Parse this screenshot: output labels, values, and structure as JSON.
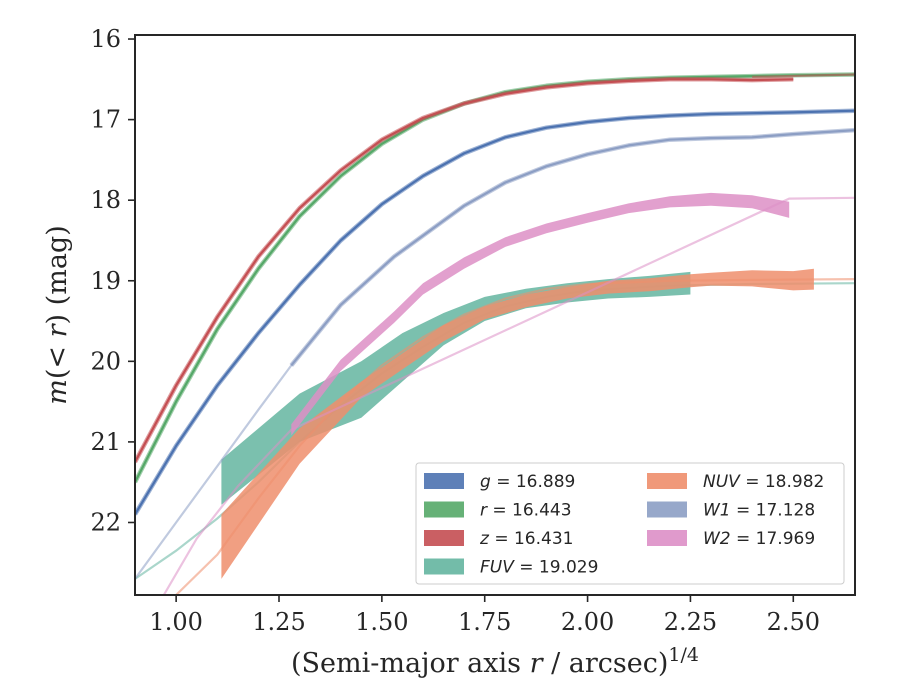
{
  "chart_data": {
    "type": "line",
    "xlabel": "(Semi-major axis r / arcsec)",
    "xlabel_superscript": "1/4",
    "ylabel": "m(< r) (mag)",
    "xlim": [
      0.9,
      2.65
    ],
    "ylim": [
      22.9,
      15.95
    ],
    "y_inverted": true,
    "grid": false,
    "legend_position": "lower-right",
    "x_ticks": [
      1.0,
      1.25,
      1.5,
      1.75,
      2.0,
      2.25,
      2.5
    ],
    "x_tick_labels": [
      "1.00",
      "1.25",
      "1.50",
      "1.75",
      "2.00",
      "2.25",
      "2.50"
    ],
    "y_ticks": [
      16,
      17,
      18,
      19,
      20,
      21,
      22
    ],
    "y_tick_labels": [
      "16",
      "17",
      "18",
      "19",
      "20",
      "21",
      "22"
    ],
    "series": [
      {
        "name": "g = 16.889",
        "color": "#4c72b0",
        "band_halfwidth": 0.02,
        "model_x": [],
        "model_y": [],
        "x": [
          0.9,
          1.0,
          1.1,
          1.2,
          1.3,
          1.4,
          1.5,
          1.6,
          1.7,
          1.8,
          1.9,
          2.0,
          2.1,
          2.2,
          2.3,
          2.4,
          2.5,
          2.65
        ],
        "y": [
          21.9,
          21.05,
          20.3,
          19.65,
          19.05,
          18.5,
          18.05,
          17.7,
          17.42,
          17.22,
          17.1,
          17.03,
          16.98,
          16.95,
          16.93,
          16.92,
          16.91,
          16.89
        ]
      },
      {
        "name": "r = 16.443",
        "color": "#55a868",
        "band_halfwidth": 0.02,
        "model_x": [],
        "model_y": [],
        "x": [
          0.9,
          1.0,
          1.1,
          1.2,
          1.3,
          1.4,
          1.5,
          1.6,
          1.7,
          1.8,
          1.9,
          2.0,
          2.1,
          2.2,
          2.3,
          2.4,
          2.5,
          2.65
        ],
        "y": [
          21.5,
          20.5,
          19.6,
          18.85,
          18.2,
          17.7,
          17.3,
          17.0,
          16.8,
          16.66,
          16.58,
          16.53,
          16.5,
          16.48,
          16.47,
          16.46,
          16.45,
          16.44
        ]
      },
      {
        "name": "z = 16.431",
        "color": "#c44e52",
        "band_halfwidth": 0.02,
        "model_x": [
          2.4,
          2.65
        ],
        "model_y": [
          16.47,
          16.44
        ],
        "x": [
          0.9,
          1.0,
          1.1,
          1.2,
          1.3,
          1.4,
          1.5,
          1.6,
          1.7,
          1.8,
          1.9,
          2.0,
          2.1,
          2.2,
          2.3,
          2.4,
          2.5
        ],
        "y": [
          21.25,
          20.3,
          19.45,
          18.7,
          18.1,
          17.63,
          17.25,
          16.98,
          16.8,
          16.68,
          16.6,
          16.55,
          16.52,
          16.5,
          16.5,
          16.51,
          16.5
        ]
      },
      {
        "name": "FUV = 19.029",
        "color": "#64b5a0",
        "band_halfwidth": 0.0,
        "x": [
          1.11,
          1.3,
          1.45,
          1.55,
          1.65,
          1.75,
          1.85,
          1.95,
          2.05,
          2.15,
          2.25
        ],
        "y": [
          21.5,
          20.7,
          20.35,
          19.95,
          19.6,
          19.35,
          19.22,
          19.15,
          19.1,
          19.07,
          19.03
        ],
        "err": [
          0.28,
          0.3,
          0.35,
          0.3,
          0.2,
          0.15,
          0.12,
          0.12,
          0.12,
          0.13,
          0.14
        ],
        "model_x": [
          0.9,
          1.0,
          1.1,
          1.2,
          1.3,
          1.4,
          1.5,
          1.6,
          1.7,
          1.8,
          1.9,
          2.0,
          2.2,
          2.4,
          2.65
        ],
        "model_y": [
          22.7,
          22.35,
          21.95,
          21.5,
          21.0,
          20.55,
          20.15,
          19.82,
          19.52,
          19.32,
          19.2,
          19.12,
          19.06,
          19.04,
          19.03
        ]
      },
      {
        "name": "NUV = 18.982",
        "color": "#ee8e6c",
        "band_halfwidth": 0.0,
        "x": [
          1.11,
          1.3,
          1.45,
          1.55,
          1.65,
          1.75,
          1.85,
          1.95,
          2.05,
          2.15,
          2.25,
          2.3,
          2.4,
          2.5,
          2.55
        ],
        "y": [
          22.3,
          21.05,
          20.35,
          20.0,
          19.65,
          19.4,
          19.25,
          19.15,
          19.08,
          19.05,
          19.0,
          18.98,
          18.97,
          19.0,
          18.98
        ],
        "err": [
          0.4,
          0.22,
          0.1,
          0.1,
          0.1,
          0.08,
          0.08,
          0.07,
          0.08,
          0.08,
          0.08,
          0.08,
          0.1,
          0.12,
          0.13
        ],
        "model_x": [
          1.0,
          1.1,
          1.2,
          1.3,
          1.4,
          1.5,
          1.6,
          1.7,
          1.8,
          1.9,
          2.0,
          2.2,
          2.4,
          2.65
        ],
        "model_y": [
          22.9,
          22.4,
          21.7,
          21.05,
          20.5,
          20.05,
          19.7,
          19.42,
          19.22,
          19.1,
          19.04,
          19.0,
          18.99,
          18.98
        ]
      },
      {
        "name": "W1 = 17.128",
        "color": "#8c9ec4",
        "band_halfwidth": 0.03,
        "x": [
          1.28,
          1.4,
          1.53,
          1.7,
          1.8,
          1.9,
          2.0,
          2.1,
          2.2,
          2.3,
          2.4,
          2.5,
          2.65
        ],
        "y": [
          20.05,
          19.3,
          18.7,
          18.07,
          17.78,
          17.58,
          17.43,
          17.32,
          17.25,
          17.23,
          17.22,
          17.18,
          17.13
        ],
        "model_x": [
          0.9,
          1.0,
          1.1,
          1.2,
          1.28
        ],
        "model_y": [
          22.7,
          22.0,
          21.3,
          20.6,
          20.05
        ]
      },
      {
        "name": "W2 = 17.969",
        "color": "#dd8fc6",
        "band_halfwidth": 0.0,
        "x": [
          1.28,
          1.4,
          1.53,
          1.6,
          1.7,
          1.8,
          1.9,
          2.0,
          2.1,
          2.2,
          2.3,
          2.4,
          2.49
        ],
        "y": [
          20.85,
          20.05,
          19.45,
          19.1,
          18.78,
          18.52,
          18.35,
          18.22,
          18.1,
          18.02,
          17.99,
          18.02,
          18.12
        ],
        "err": [
          0.07,
          0.07,
          0.07,
          0.07,
          0.07,
          0.06,
          0.06,
          0.06,
          0.06,
          0.07,
          0.08,
          0.08,
          0.1
        ],
        "model_x": [
          0.97,
          1.05,
          1.15,
          1.28,
          2.49,
          2.65
        ],
        "model_y": [
          22.9,
          22.2,
          21.55,
          20.85,
          17.98,
          17.97
        ]
      }
    ],
    "legend": [
      {
        "label": "g = 16.889",
        "var": "g",
        "value": "16.889",
        "color": "#4c72b0"
      },
      {
        "label": "r = 16.443",
        "var": "r",
        "value": "16.443",
        "color": "#55a868"
      },
      {
        "label": "z = 16.431",
        "var": "z",
        "value": "16.431",
        "color": "#c44e52"
      },
      {
        "label": "FUV = 19.029",
        "var": "FUV",
        "value": "19.029",
        "color": "#64b5a0"
      },
      {
        "label": "NUV = 18.982",
        "var": "NUV",
        "value": "18.982",
        "color": "#ee8e6c"
      },
      {
        "label": "W1 = 17.128",
        "var": "W1",
        "value": "17.128",
        "color": "#8c9ec4"
      },
      {
        "label": "W2 = 17.969",
        "var": "W2",
        "value": "17.969",
        "color": "#dd8fc6"
      }
    ]
  }
}
